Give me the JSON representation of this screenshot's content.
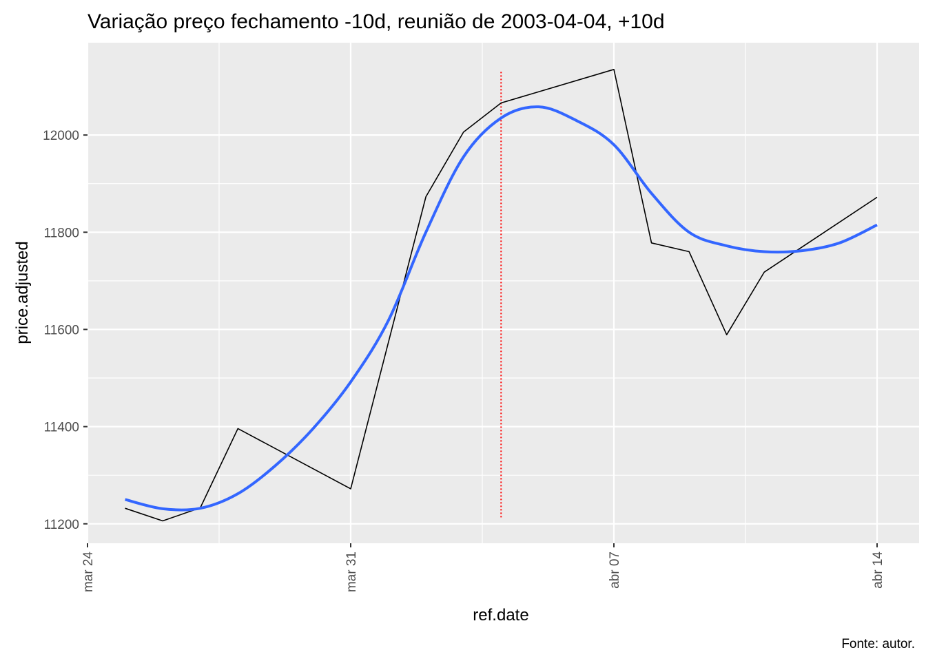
{
  "chart_data": {
    "type": "line",
    "title": "Variação preço fechamento -10d, reunião de 2003-04-04, +10d",
    "xlabel": "ref.date",
    "ylabel": "price.adjusted",
    "caption": "Fonte: autor.",
    "x_axis": {
      "type": "date",
      "range": [
        "2003-03-24",
        "2003-04-14"
      ],
      "ticks": [
        {
          "date": "2003-03-24",
          "label": "mar 24"
        },
        {
          "date": "2003-03-31",
          "label": "mar 31"
        },
        {
          "date": "2003-04-07",
          "label": "abr 07"
        },
        {
          "date": "2003-04-14",
          "label": "abr 14"
        }
      ]
    },
    "y_axis": {
      "range": [
        11160,
        12190
      ],
      "ticks": [
        11200,
        11400,
        11600,
        11800,
        12000
      ]
    },
    "grid": true,
    "event_line": {
      "date": "2003-04-04",
      "color": "#ff0000",
      "style": "dotted",
      "y_range": [
        11210,
        12130
      ]
    },
    "series": [
      {
        "style": "line",
        "color": "#000000",
        "points": [
          {
            "date": "2003-03-25",
            "value": 11232
          },
          {
            "date": "2003-03-26",
            "value": 11206
          },
          {
            "date": "2003-03-27",
            "value": 11233
          },
          {
            "date": "2003-03-28",
            "value": 11396
          },
          {
            "date": "2003-03-31",
            "value": 11272
          },
          {
            "date": "2003-04-02",
            "value": 11873
          },
          {
            "date": "2003-04-03",
            "value": 12006
          },
          {
            "date": "2003-04-04",
            "value": 12066
          },
          {
            "date": "2003-04-07",
            "value": 12135
          },
          {
            "date": "2003-04-08",
            "value": 11778
          },
          {
            "date": "2003-04-09",
            "value": 11760
          },
          {
            "date": "2003-04-10",
            "value": 11589
          },
          {
            "date": "2003-04-11",
            "value": 11718
          },
          {
            "date": "2003-04-14",
            "value": 11872
          }
        ]
      },
      {
        "style": "smooth",
        "color": "#3366ff",
        "points": [
          {
            "date": "2003-03-25",
            "value": 11250
          },
          {
            "date": "2003-03-26",
            "value": 11231
          },
          {
            "date": "2003-03-27",
            "value": 11232
          },
          {
            "date": "2003-03-28",
            "value": 11262
          },
          {
            "date": "2003-03-29",
            "value": 11320
          },
          {
            "date": "2003-03-30",
            "value": 11396
          },
          {
            "date": "2003-03-31",
            "value": 11492
          },
          {
            "date": "2003-04-01",
            "value": 11618
          },
          {
            "date": "2003-04-02",
            "value": 11800
          },
          {
            "date": "2003-04-03",
            "value": 11955
          },
          {
            "date": "2003-04-04",
            "value": 12035
          },
          {
            "date": "2003-04-05",
            "value": 12058
          },
          {
            "date": "2003-04-06",
            "value": 12030
          },
          {
            "date": "2003-04-07",
            "value": 11980
          },
          {
            "date": "2003-04-08",
            "value": 11880
          },
          {
            "date": "2003-04-09",
            "value": 11800
          },
          {
            "date": "2003-04-10",
            "value": 11772
          },
          {
            "date": "2003-04-11",
            "value": 11760
          },
          {
            "date": "2003-04-12",
            "value": 11762
          },
          {
            "date": "2003-04-13",
            "value": 11778
          },
          {
            "date": "2003-04-14",
            "value": 11815
          }
        ]
      }
    ]
  }
}
